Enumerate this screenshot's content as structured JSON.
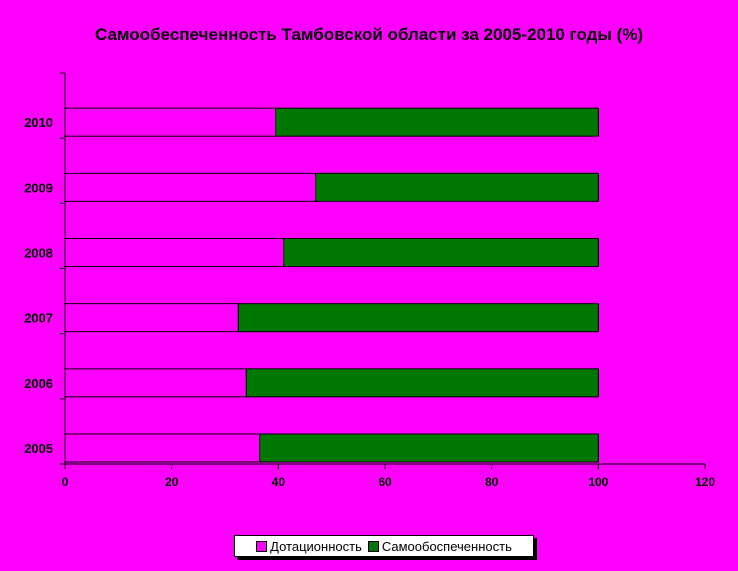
{
  "colors": {
    "background": "#ff00ff",
    "subsidy": "#ff00ff",
    "self": "#007700",
    "axis": "#000000"
  },
  "chart_data": {
    "type": "bar",
    "orientation": "horizontal",
    "stacked": true,
    "title": "Самообеспеченность Тамбовской области за 2005-2010 годы (%)",
    "categories": [
      "2005",
      "2006",
      "2007",
      "2008",
      "2009",
      "2010"
    ],
    "series": [
      {
        "name": "Дотационность",
        "values": [
          36.5,
          34,
          32.5,
          41,
          47,
          39.5
        ]
      },
      {
        "name": "Самообоспеченность",
        "values": [
          63.5,
          66,
          67.5,
          59,
          53,
          60.5
        ]
      }
    ],
    "xlim": [
      0,
      120
    ],
    "xticks": [
      "0",
      "20",
      "40",
      "60",
      "80",
      "100",
      "120"
    ],
    "grid": false,
    "legend_position": "bottom"
  }
}
